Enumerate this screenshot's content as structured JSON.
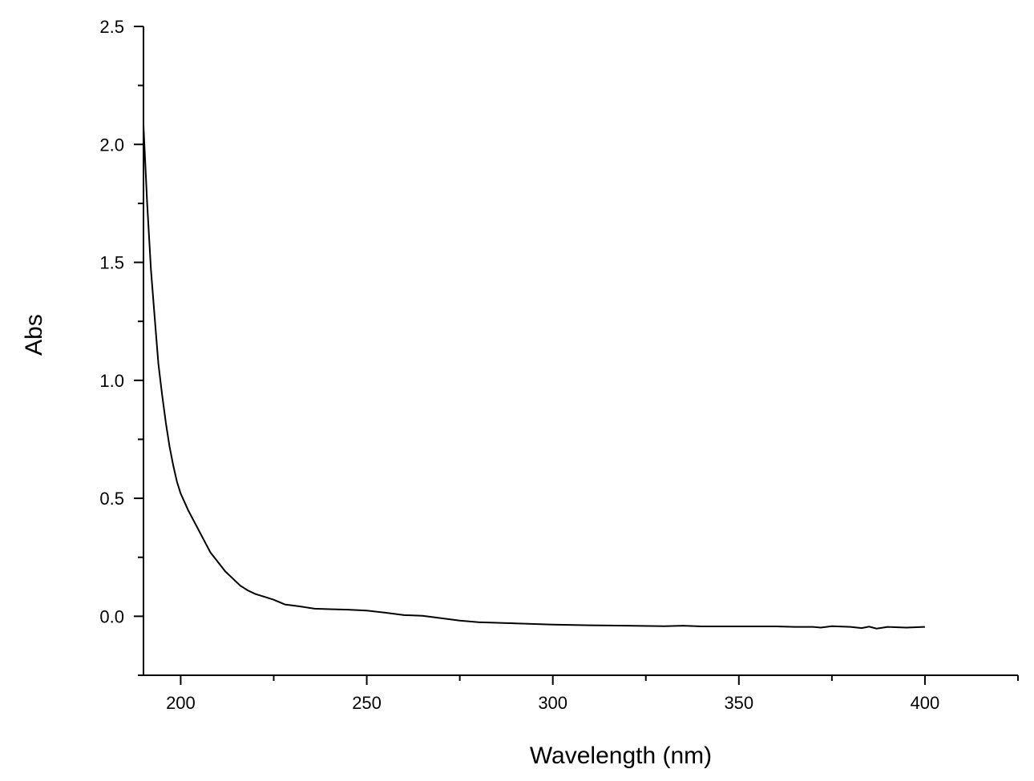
{
  "chart_data": {
    "type": "line",
    "title": "",
    "xlabel": "Wavelength (nm)",
    "ylabel": "Abs",
    "xlim": [
      190,
      425
    ],
    "ylim": [
      -0.25,
      2.5
    ],
    "xticks": [
      "200",
      "250",
      "300",
      "350",
      "400"
    ],
    "xtick_values": [
      200,
      250,
      300,
      350,
      400
    ],
    "yticks": [
      "0.0",
      "0.5",
      "1.0",
      "1.5",
      "2.0",
      "2.5"
    ],
    "ytick_values": [
      0.0,
      0.5,
      1.0,
      1.5,
      2.0,
      2.5
    ],
    "grid": false,
    "line_color": "#000000",
    "series": [
      {
        "x": [
          190,
          191,
          192,
          193,
          194,
          195,
          196,
          197,
          198,
          199,
          200,
          202,
          204,
          206,
          208,
          210,
          212,
          214,
          216,
          218,
          220,
          222,
          225,
          228,
          232,
          236,
          240,
          245,
          250,
          255,
          260,
          265,
          270,
          275,
          280,
          290,
          300,
          310,
          320,
          330,
          335,
          340,
          350,
          360,
          365,
          370,
          372,
          375,
          380,
          383,
          385,
          387,
          390,
          395,
          400
        ],
        "y": [
          2.08,
          1.75,
          1.47,
          1.27,
          1.07,
          0.94,
          0.82,
          0.72,
          0.64,
          0.57,
          0.52,
          0.45,
          0.39,
          0.33,
          0.27,
          0.23,
          0.19,
          0.16,
          0.13,
          0.11,
          0.095,
          0.085,
          0.07,
          0.05,
          0.042,
          0.032,
          0.03,
          0.028,
          0.024,
          0.015,
          0.005,
          0.002,
          -0.008,
          -0.018,
          -0.025,
          -0.03,
          -0.035,
          -0.038,
          -0.04,
          -0.042,
          -0.04,
          -0.043,
          -0.043,
          -0.043,
          -0.045,
          -0.045,
          -0.048,
          -0.042,
          -0.045,
          -0.05,
          -0.044,
          -0.052,
          -0.045,
          -0.048,
          -0.045
        ]
      }
    ]
  }
}
